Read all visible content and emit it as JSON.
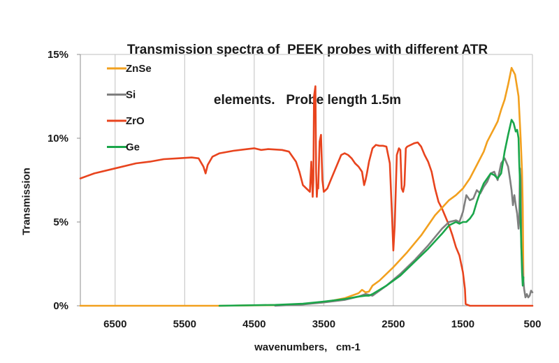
{
  "chart_data": {
    "type": "line",
    "title_line1": "Transmission spectra of  PEEK probes with different ATR",
    "title_line2": "elements.   Probe length 1.5m",
    "xlabel": "wavenumbers,   cm-1",
    "ylabel": "Transmission",
    "xlim": [
      7000,
      500
    ],
    "ylim": [
      0,
      15
    ],
    "x_ticks": [
      6500,
      5500,
      4500,
      3500,
      2500,
      1500,
      500
    ],
    "x_tick_labels": [
      "6500",
      "5500",
      "4500",
      "3500",
      "2500",
      "1500",
      "500"
    ],
    "y_ticks": [
      0,
      5,
      10,
      15
    ],
    "y_tick_labels": [
      "0%",
      "5%",
      "10%",
      "15%"
    ],
    "grid": "vertical",
    "legend_position": "top-left",
    "series": [
      {
        "name": "ZnSe",
        "color": "#f2a01e",
        "x": [
          7000,
          5000,
          4000,
          3500,
          3200,
          3000,
          2950,
          2900,
          2850,
          2800,
          2700,
          2500,
          2300,
          2100,
          1900,
          1700,
          1600,
          1500,
          1400,
          1300,
          1200,
          1150,
          1100,
          1050,
          1000,
          950,
          900,
          850,
          800,
          750,
          700,
          670,
          650,
          640,
          630
        ],
        "values": [
          0,
          0,
          0.05,
          0.2,
          0.45,
          0.75,
          0.95,
          0.8,
          0.85,
          1.2,
          1.5,
          2.3,
          3.2,
          4.2,
          5.4,
          6.3,
          6.6,
          7.0,
          7.6,
          8.4,
          9.2,
          9.8,
          10.2,
          10.6,
          11.0,
          11.7,
          12.3,
          13.2,
          14.2,
          13.8,
          12.5,
          10.0,
          8.0,
          6.0,
          1.5
        ]
      },
      {
        "name": "Si",
        "color": "#7f7f7f",
        "x": [
          4200,
          3800,
          3500,
          3200,
          3000,
          2900,
          2800,
          2600,
          2400,
          2200,
          2000,
          1800,
          1700,
          1600,
          1550,
          1500,
          1450,
          1400,
          1350,
          1300,
          1250,
          1200,
          1150,
          1100,
          1050,
          1000,
          950,
          900,
          850,
          820,
          800,
          780,
          760,
          740,
          720,
          700,
          690,
          680,
          670,
          660,
          640,
          620,
          600,
          580,
          560,
          540,
          520,
          500
        ],
        "values": [
          0,
          0.08,
          0.2,
          0.35,
          0.55,
          0.7,
          0.6,
          1.2,
          1.9,
          2.7,
          3.6,
          4.6,
          5.0,
          5.1,
          5.0,
          5.6,
          6.6,
          6.3,
          6.4,
          6.9,
          6.7,
          7.1,
          7.4,
          7.9,
          8.0,
          7.5,
          8.5,
          8.8,
          8.3,
          7.5,
          6.9,
          6.0,
          6.6,
          6.0,
          5.5,
          4.6,
          5.2,
          8.2,
          7.5,
          3.5,
          2.0,
          1.0,
          0.5,
          0.7,
          0.5,
          0.6,
          0.9,
          0.8
        ]
      },
      {
        "name": "ZrO",
        "color": "#e8441e",
        "x": [
          7000,
          6800,
          6500,
          6200,
          6000,
          5800,
          5600,
          5400,
          5300,
          5230,
          5200,
          5170,
          5100,
          5000,
          4800,
          4600,
          4500,
          4400,
          4300,
          4100,
          4000,
          3900,
          3850,
          3800,
          3750,
          3700,
          3680,
          3660,
          3650,
          3640,
          3620,
          3610,
          3600,
          3590,
          3580,
          3560,
          3540,
          3520,
          3500,
          3450,
          3400,
          3350,
          3300,
          3250,
          3200,
          3150,
          3100,
          3050,
          3000,
          2950,
          2920,
          2900,
          2880,
          2850,
          2800,
          2750,
          2700,
          2650,
          2600,
          2550,
          2520,
          2500,
          2480,
          2450,
          2420,
          2400,
          2380,
          2360,
          2340,
          2320,
          2300,
          2200,
          2150,
          2100,
          2050,
          2000,
          1950,
          1900,
          1850,
          1800,
          1750,
          1700,
          1650,
          1600,
          1550,
          1500,
          1470,
          1460,
          1400,
          1000,
          500
        ],
        "values": [
          7.6,
          7.9,
          8.2,
          8.5,
          8.6,
          8.75,
          8.8,
          8.85,
          8.8,
          8.3,
          7.9,
          8.4,
          8.9,
          9.1,
          9.25,
          9.35,
          9.4,
          9.3,
          9.35,
          9.3,
          9.2,
          8.6,
          8.0,
          7.2,
          7.0,
          6.8,
          8.6,
          6.5,
          7.5,
          12.5,
          13.1,
          8.0,
          6.5,
          7.2,
          7.0,
          9.8,
          10.2,
          7.5,
          6.8,
          7.0,
          7.5,
          8.0,
          8.5,
          9.0,
          9.1,
          9.0,
          8.8,
          8.5,
          8.3,
          8.0,
          7.2,
          7.5,
          7.9,
          8.6,
          9.4,
          9.6,
          9.55,
          9.55,
          9.5,
          8.5,
          5.5,
          3.3,
          4.8,
          9.0,
          9.4,
          9.3,
          7.0,
          6.8,
          7.2,
          9.4,
          9.5,
          9.7,
          9.75,
          9.5,
          9.0,
          8.6,
          8.0,
          7.0,
          6.2,
          5.8,
          5.3,
          4.8,
          4.2,
          3.5,
          3.0,
          2.0,
          1.0,
          0.1,
          0,
          0,
          0
        ]
      },
      {
        "name": "Ge",
        "color": "#1aa64a",
        "x": [
          5000,
          4200,
          3800,
          3500,
          3200,
          3000,
          2900,
          2850,
          2800,
          2600,
          2400,
          2200,
          2000,
          1800,
          1700,
          1600,
          1550,
          1500,
          1450,
          1400,
          1350,
          1300,
          1250,
          1200,
          1150,
          1100,
          1050,
          1000,
          950,
          900,
          850,
          800,
          770,
          740,
          720,
          700,
          690,
          680,
          670,
          660,
          650,
          640,
          630
        ],
        "values": [
          0,
          0.05,
          0.12,
          0.25,
          0.4,
          0.55,
          0.6,
          0.6,
          0.7,
          1.2,
          1.8,
          2.6,
          3.4,
          4.3,
          4.8,
          5.0,
          4.9,
          5.0,
          5.0,
          5.2,
          5.5,
          6.2,
          6.8,
          7.3,
          7.6,
          7.9,
          7.8,
          7.6,
          7.9,
          9.2,
          10.2,
          11.1,
          10.9,
          10.4,
          10.5,
          10.0,
          8.5,
          7.5,
          5.0,
          3.5,
          2.0,
          1.2,
          1.7
        ]
      }
    ]
  }
}
